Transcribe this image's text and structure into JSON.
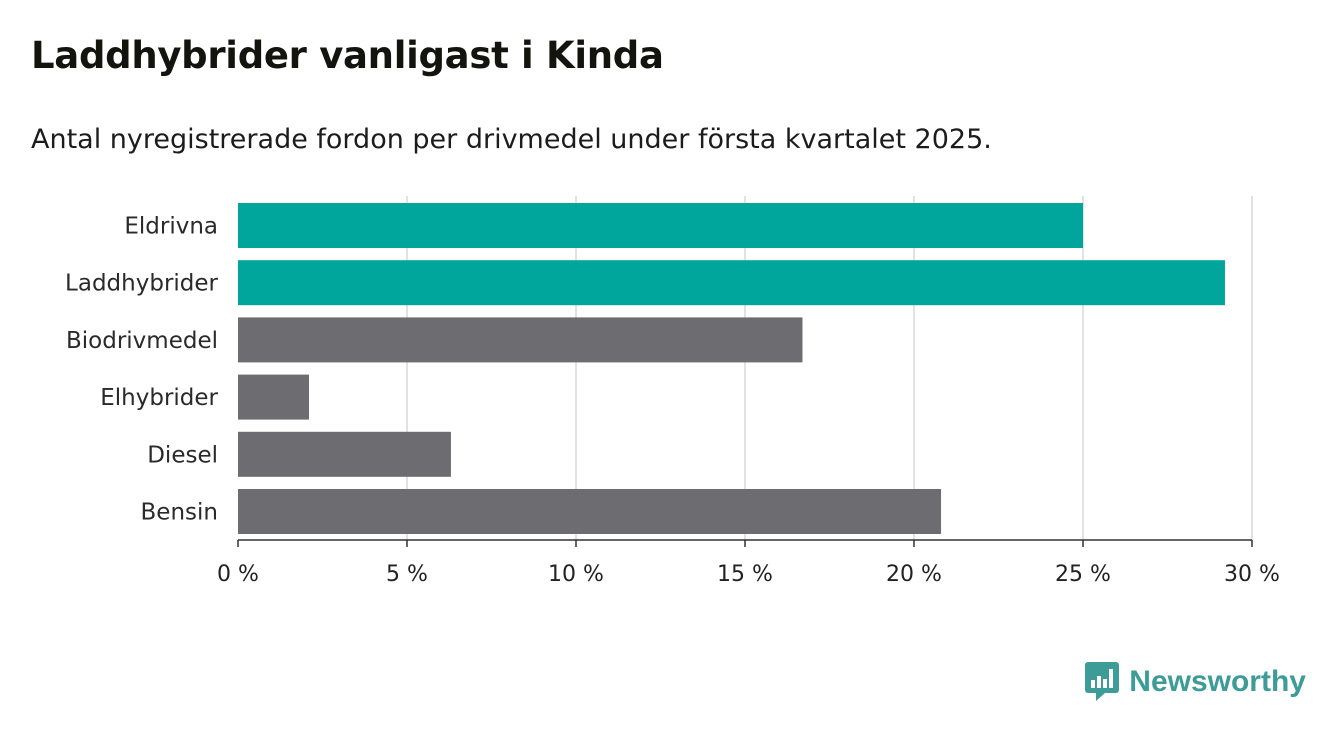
{
  "title": "Laddhybrider vanligast i Kinda",
  "subtitle": "Antal nyregistrerade fordon per drivmedel under första kvartalet 2025.",
  "colors": {
    "highlight": "#00a69b",
    "default": "#6d6c71",
    "grid": "#d9d9d9",
    "axis": "#333333"
  },
  "chart_data": {
    "type": "bar",
    "orientation": "horizontal",
    "title": "Laddhybrider vanligast i Kinda",
    "subtitle": "Antal nyregistrerade fordon per drivmedel under första kvartalet 2025.",
    "categories": [
      "Eldrivna",
      "Laddhybrider",
      "Biodrivmedel",
      "Elhybrider",
      "Diesel",
      "Bensin"
    ],
    "values": [
      25.0,
      29.2,
      16.7,
      2.1,
      6.3,
      20.8
    ],
    "highlight": [
      true,
      true,
      false,
      false,
      false,
      false
    ],
    "unit": "%",
    "xlim": [
      0,
      30
    ],
    "xticks": [
      0,
      5,
      10,
      15,
      20,
      25,
      30
    ],
    "tick_labels": [
      "0 %",
      "5 %",
      "10 %",
      "15 %",
      "20 %",
      "25 %",
      "30 %"
    ],
    "grid": true
  },
  "logo": {
    "text": "Newsworthy",
    "icon": "bar-chart-speech-bubble-icon"
  }
}
